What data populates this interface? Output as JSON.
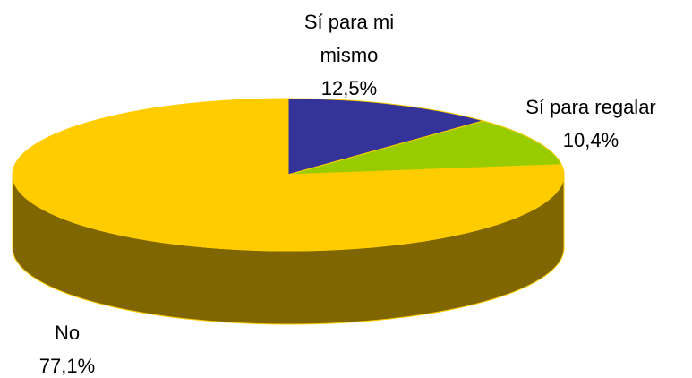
{
  "chart_data": {
    "type": "pie",
    "categories": [
      "Sí para mi mismo",
      "Sí para regalar",
      "No"
    ],
    "values": [
      12.5,
      10.4,
      77.1
    ],
    "value_labels": [
      "12,5%",
      "10,4%",
      "77,1%"
    ],
    "colors": [
      "#333399",
      "#99cc00",
      "#ffcc00"
    ]
  }
}
